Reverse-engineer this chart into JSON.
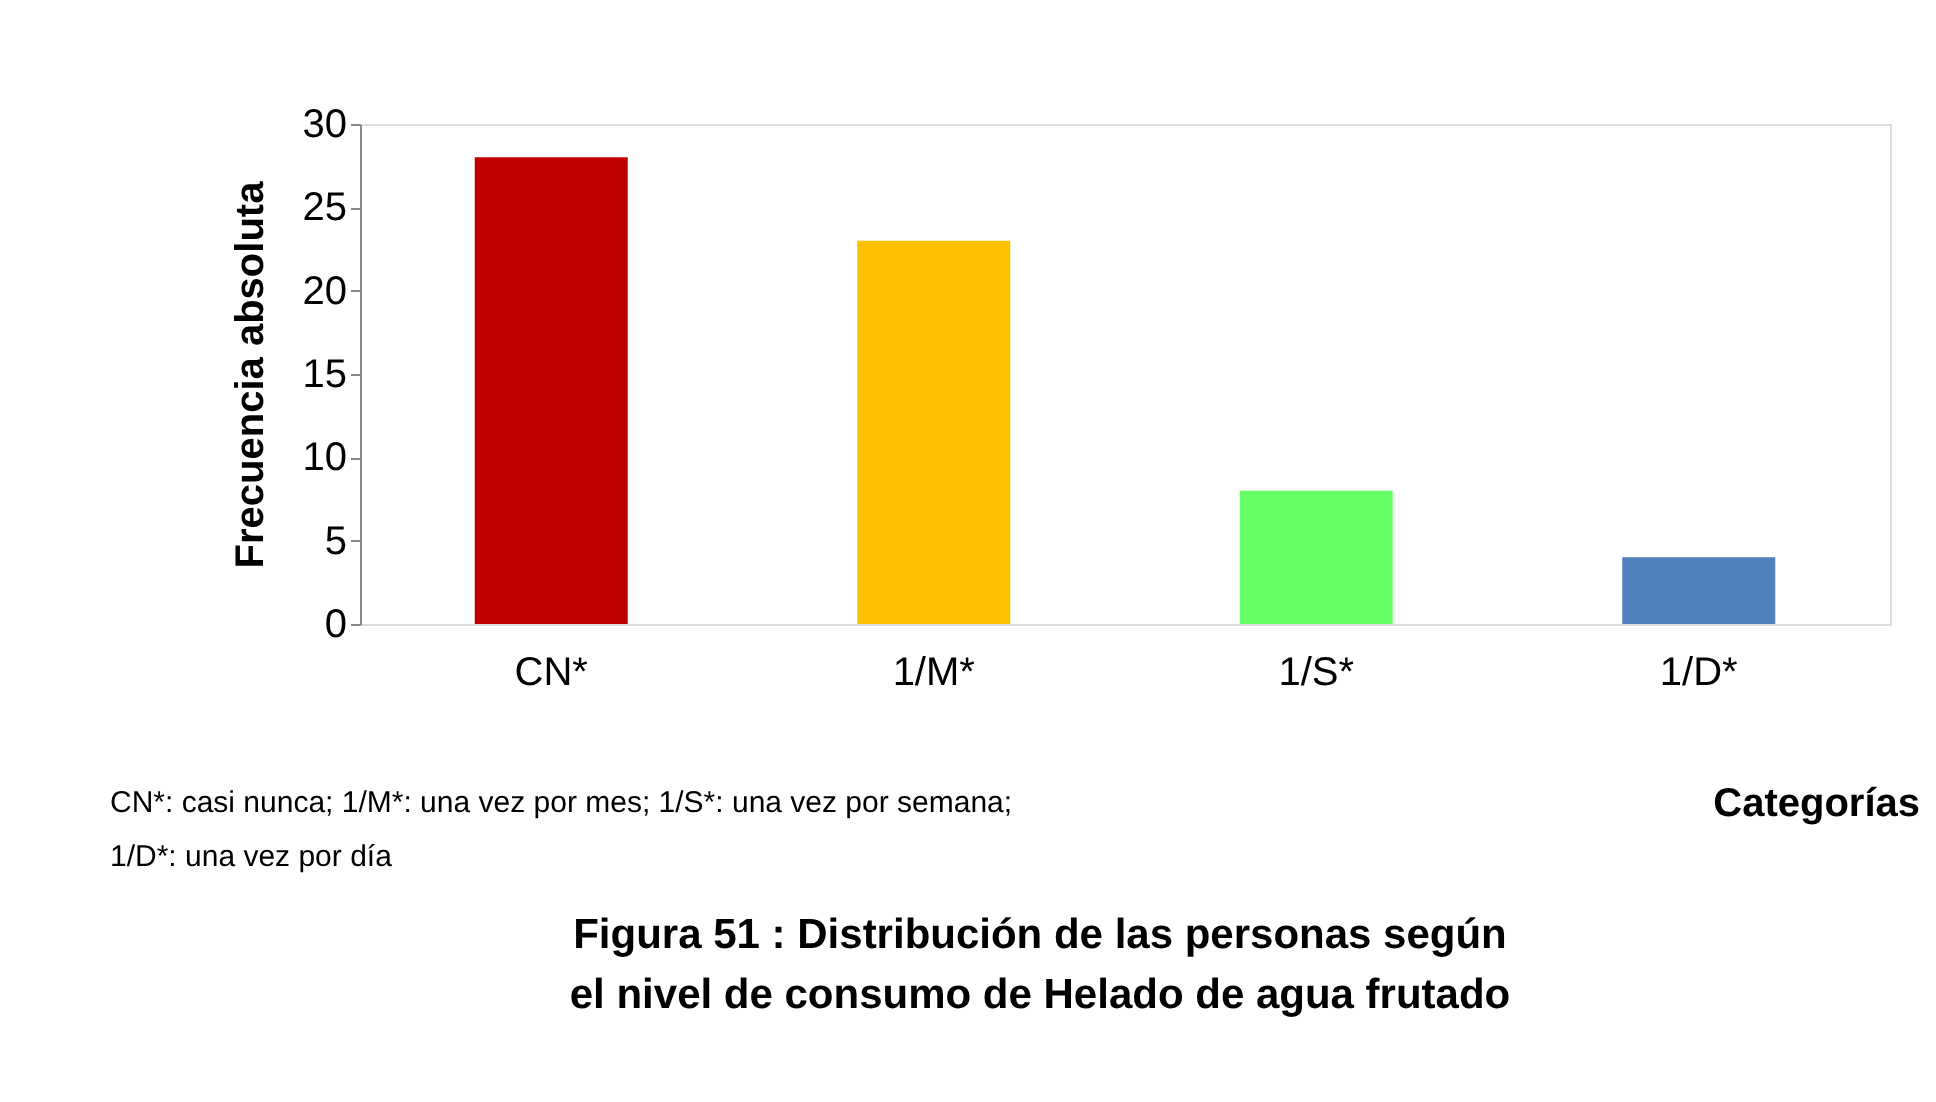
{
  "chart_data": {
    "type": "bar",
    "title": "Figura 51 : Distribución de las personas según el nivel de consumo de Helado de agua frutado",
    "xlabel": "Categorías",
    "ylabel": "Frecuencia absoluta",
    "categories": [
      "CN*",
      "1/M*",
      "1/S*",
      "1/D*"
    ],
    "values": [
      28,
      23,
      8,
      4
    ],
    "colors": [
      "#c00000",
      "#ffc000",
      "#66ff66",
      "#4f81bd"
    ],
    "ylim": [
      0,
      30
    ],
    "yticks": [
      0,
      5,
      10,
      15,
      20,
      25,
      30
    ],
    "grid": false,
    "legend": false,
    "annotations": [
      "CN*: casi nunca; 1/M*: una vez por mes; 1/S*: una vez por semana;",
      "1/D*: una vez por día"
    ]
  }
}
